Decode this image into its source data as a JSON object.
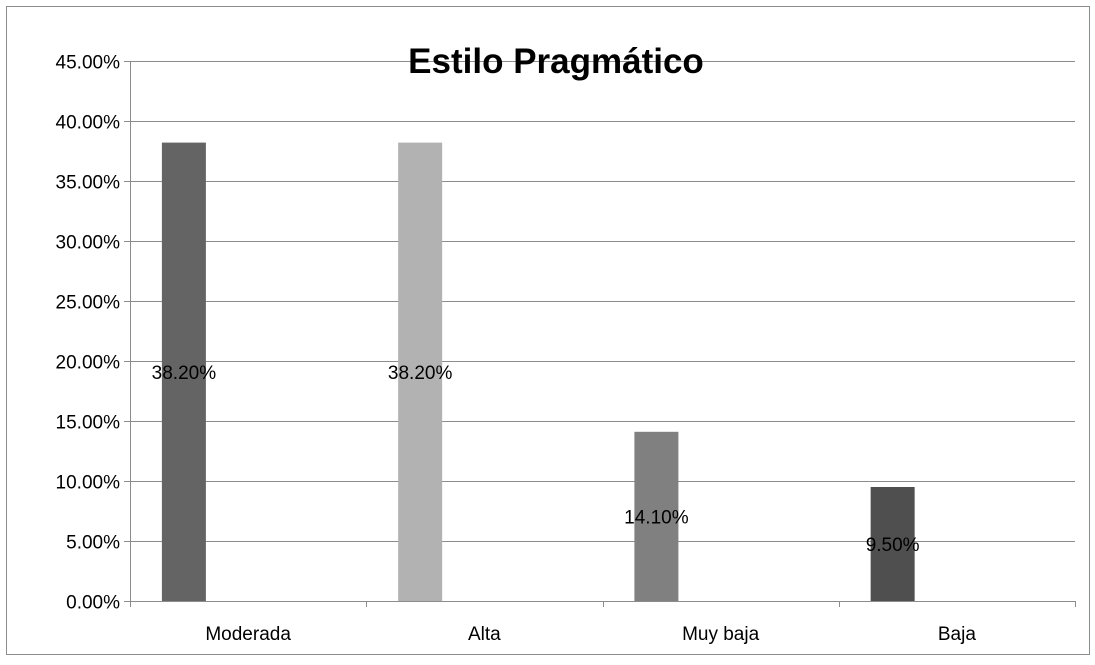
{
  "chart_data": {
    "type": "bar",
    "title": "Estilo Pragmático",
    "categories": [
      "Moderada",
      "Alta",
      "Muy baja",
      "Baja"
    ],
    "values": [
      38.2,
      38.2,
      14.1,
      9.5
    ],
    "data_labels": [
      "38.20%",
      "38.20%",
      "14.10%",
      "9.50%"
    ],
    "bar_colors": [
      "#646464",
      "#b2b2b2",
      "#808080",
      "#4f4f4f"
    ],
    "ylim": [
      0,
      45
    ],
    "yticks": [
      0,
      5,
      10,
      15,
      20,
      25,
      30,
      35,
      40,
      45
    ],
    "ytick_labels": [
      "0.00%",
      "5.00%",
      "10.00%",
      "15.00%",
      "20.00%",
      "25.00%",
      "30.00%",
      "35.00%",
      "40.00%",
      "45.00%"
    ],
    "grid": true,
    "legend": "none",
    "xlabel": "",
    "ylabel": ""
  }
}
